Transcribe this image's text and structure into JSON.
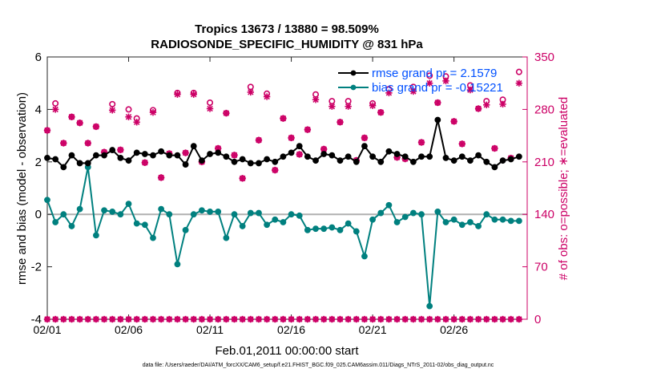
{
  "chart_data": {
    "type": "line",
    "title_line1": "Tropics 13673 / 13880 = 98.509%",
    "title_line2": "RADIOSONDE_SPECIFIC_HUMIDITY @ 831 hPa",
    "xlabel": "Feb.01,2011 00:00:00 start",
    "ylabel_left": "rmse and bias (model - observation)",
    "ylabel_right": "# of obs: o=possible; ∗=evaluated",
    "footer": "data file: /Users/raeder/DAI/ATM_forcXX/CAM6_setup/f.e21.FHIST_BGC.f09_025.CAM6assim.011/Diags_NTrS_2011-02/obs_diag_output.nc",
    "x_range": [
      0,
      29.5
    ],
    "x_tick_positions": [
      0,
      5,
      10,
      15,
      20,
      25
    ],
    "x_tick_labels": [
      "02/01",
      "02/06",
      "02/11",
      "02/16",
      "02/21",
      "02/26"
    ],
    "ylim_left": [
      -4,
      6
    ],
    "y_ticks_left": [
      -4,
      -2,
      0,
      2,
      4,
      6
    ],
    "y_tick_labels_left": [
      "-4",
      "-2",
      "0",
      "2",
      "4",
      "6"
    ],
    "ylim_right": [
      0,
      350
    ],
    "y_ticks_right": [
      0,
      70,
      140,
      210,
      280,
      350
    ],
    "y_tick_labels_right": [
      "0",
      "70",
      "140",
      "210",
      "280",
      "350"
    ],
    "x": [
      0.0,
      0.5,
      1.0,
      1.5,
      2.0,
      2.5,
      3.0,
      3.5,
      4.0,
      4.5,
      5.0,
      5.5,
      6.0,
      6.5,
      7.0,
      7.5,
      8.0,
      8.5,
      9.0,
      9.5,
      10.0,
      10.5,
      11.0,
      11.5,
      12.0,
      12.5,
      13.0,
      13.5,
      14.0,
      14.5,
      15.0,
      15.5,
      16.0,
      16.5,
      17.0,
      17.5,
      18.0,
      18.5,
      19.0,
      19.5,
      20.0,
      20.5,
      21.0,
      21.5,
      22.0,
      22.5,
      23.0,
      23.5,
      24.0,
      24.5,
      25.0,
      25.5,
      26.0,
      26.5,
      27.0,
      27.5,
      28.0,
      28.5,
      29.0
    ],
    "series": [
      {
        "name": "rmse grand pr = 2.1579",
        "color": "#000000",
        "values": [
          2.15,
          2.1,
          1.8,
          2.25,
          1.95,
          1.95,
          2.25,
          2.25,
          2.45,
          2.15,
          2.05,
          2.35,
          2.3,
          2.25,
          2.4,
          2.25,
          2.25,
          1.9,
          2.6,
          2.05,
          2.3,
          2.35,
          2.2,
          2.0,
          2.1,
          1.95,
          1.95,
          2.1,
          2.0,
          2.2,
          2.35,
          2.6,
          2.2,
          2.05,
          2.3,
          2.25,
          2.05,
          2.2,
          2.0,
          2.6,
          2.2,
          2.0,
          2.4,
          2.3,
          2.2,
          2.0,
          2.2,
          2.2,
          3.6,
          2.15,
          2.05,
          2.2,
          2.05,
          2.25,
          2.0,
          1.8,
          2.05,
          2.1,
          2.2
        ]
      },
      {
        "name": "bias grand pr = -0.15221",
        "color": "#00807f",
        "values": [
          0.55,
          -0.3,
          0.0,
          -0.45,
          0.2,
          1.8,
          -0.8,
          0.15,
          0.1,
          0.0,
          0.4,
          -0.35,
          -0.4,
          -0.9,
          0.2,
          0.0,
          -1.9,
          -0.6,
          0.0,
          0.15,
          0.1,
          0.1,
          -0.9,
          0.0,
          -0.45,
          0.05,
          0.05,
          -0.4,
          -0.2,
          -0.3,
          0.0,
          -0.05,
          -0.6,
          -0.55,
          -0.55,
          -0.5,
          -0.6,
          -0.35,
          -0.65,
          -1.6,
          -0.2,
          0.05,
          0.35,
          -0.3,
          -0.1,
          0.05,
          0.0,
          -3.5,
          0.1,
          -0.3,
          -0.2,
          -0.4,
          -0.3,
          -0.45,
          0.0,
          -0.2,
          -0.2,
          -0.25,
          -0.25
        ]
      },
      {
        "name": "# of obs possible",
        "color": "#cc0066",
        "marker": "circle",
        "values": [
          252,
          288,
          235,
          270,
          262,
          235,
          257,
          223,
          287,
          226,
          280,
          268,
          209,
          279,
          189,
          221,
          302,
          222,
          302,
          210,
          289,
          228,
          275,
          219,
          188,
          310,
          239,
          301,
          199,
          268,
          242,
          220,
          253,
          300,
          227,
          291,
          263,
          291,
          212,
          242,
          288,
          276,
          307,
          216,
          214,
          310,
          236,
          325,
          289,
          324,
          264,
          234,
          312,
          281,
          291,
          228,
          293,
          215,
          330
        ]
      },
      {
        "name": "# of obs evaluated",
        "color": "#cc0066",
        "marker": "asterisk",
        "values": [
          252,
          280,
          235,
          270,
          262,
          235,
          257,
          223,
          279,
          226,
          270,
          263,
          209,
          276,
          189,
          221,
          300,
          222,
          300,
          210,
          281,
          228,
          275,
          219,
          188,
          303,
          239,
          297,
          199,
          268,
          242,
          220,
          253,
          293,
          227,
          284,
          263,
          284,
          212,
          242,
          285,
          276,
          302,
          216,
          214,
          304,
          236,
          315,
          289,
          318,
          264,
          234,
          306,
          281,
          286,
          228,
          287,
          215,
          315
        ]
      }
    ],
    "zero_obs_rows": [
      0,
      0
    ]
  }
}
